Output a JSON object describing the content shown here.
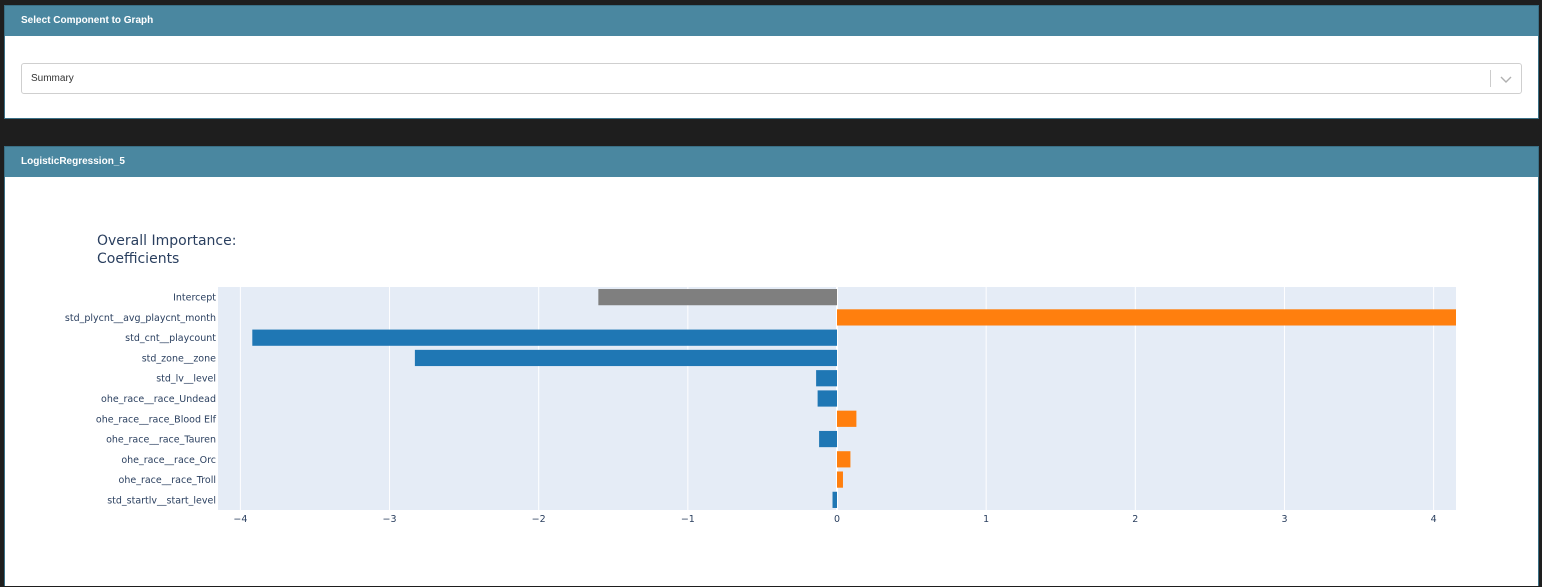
{
  "selector_card": {
    "header": "Select Component to Graph",
    "selected_value": "Summary",
    "chevron_icon": "chevron-down-icon"
  },
  "chart_card": {
    "header": "LogisticRegression_5"
  },
  "colors": {
    "header_bg": "#4a87a0",
    "positive": "#ff7f0e",
    "negative": "#1f77b4",
    "intercept": "#7f7f7f",
    "plot_bg": "#e5ecf6"
  },
  "chart_data": {
    "type": "bar",
    "orientation": "horizontal",
    "title_lines": [
      "Overall Importance:",
      "Coefficients"
    ],
    "categories": [
      "Intercept",
      "std_plycnt__avg_playcnt_month",
      "std_cnt__playcount",
      "std_zone__zone",
      "std_lv__level",
      "ohe_race__race_Undead",
      "ohe_race__race_Blood Elf",
      "ohe_race__race_Tauren",
      "ohe_race__race_Orc",
      "ohe_race__race_Troll",
      "std_startlv__start_level"
    ],
    "values": [
      -1.6,
      4.15,
      -3.92,
      -2.83,
      -0.14,
      -0.13,
      0.13,
      -0.12,
      0.09,
      0.04,
      -0.03
    ],
    "xlim": [
      -4.15,
      4.15
    ],
    "xticks": [
      -4,
      -3,
      -2,
      -1,
      0,
      1,
      2,
      3,
      4
    ],
    "xtick_labels": [
      "−4",
      "−3",
      "−2",
      "−1",
      "0",
      "1",
      "2",
      "3",
      "4"
    ],
    "xlabel": "",
    "ylabel": "",
    "grid": true,
    "legend": "none"
  }
}
